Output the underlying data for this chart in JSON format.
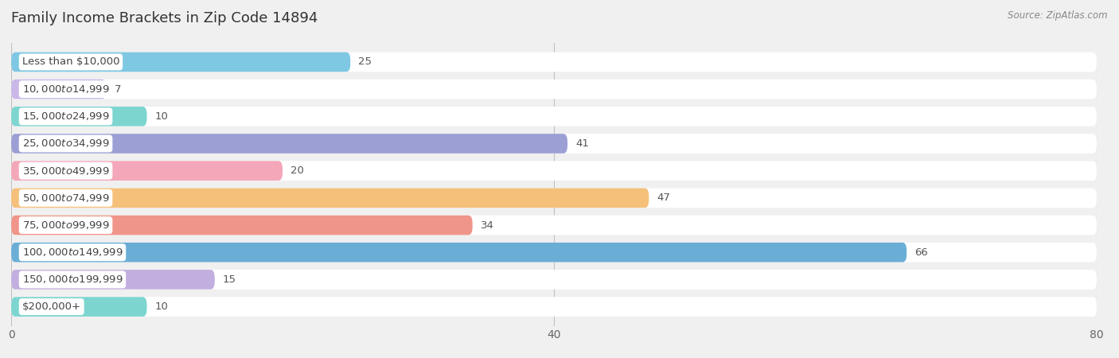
{
  "title": "Family Income Brackets in Zip Code 14894",
  "source": "Source: ZipAtlas.com",
  "categories": [
    "Less than $10,000",
    "$10,000 to $14,999",
    "$15,000 to $24,999",
    "$25,000 to $34,999",
    "$35,000 to $49,999",
    "$50,000 to $74,999",
    "$75,000 to $99,999",
    "$100,000 to $149,999",
    "$150,000 to $199,999",
    "$200,000+"
  ],
  "values": [
    25,
    7,
    10,
    41,
    20,
    47,
    34,
    66,
    15,
    10
  ],
  "bar_colors": [
    "#7ec8e3",
    "#c9b8e8",
    "#7dd5d0",
    "#9b9fd4",
    "#f4a7b9",
    "#f5c07a",
    "#f0958a",
    "#6aaed6",
    "#c3aee0",
    "#7dd5d0"
  ],
  "background_color": "#f0f0f0",
  "xlim": [
    0,
    80
  ],
  "xticks": [
    0,
    40,
    80
  ],
  "title_fontsize": 13,
  "label_fontsize": 9.5,
  "value_fontsize": 9.5
}
